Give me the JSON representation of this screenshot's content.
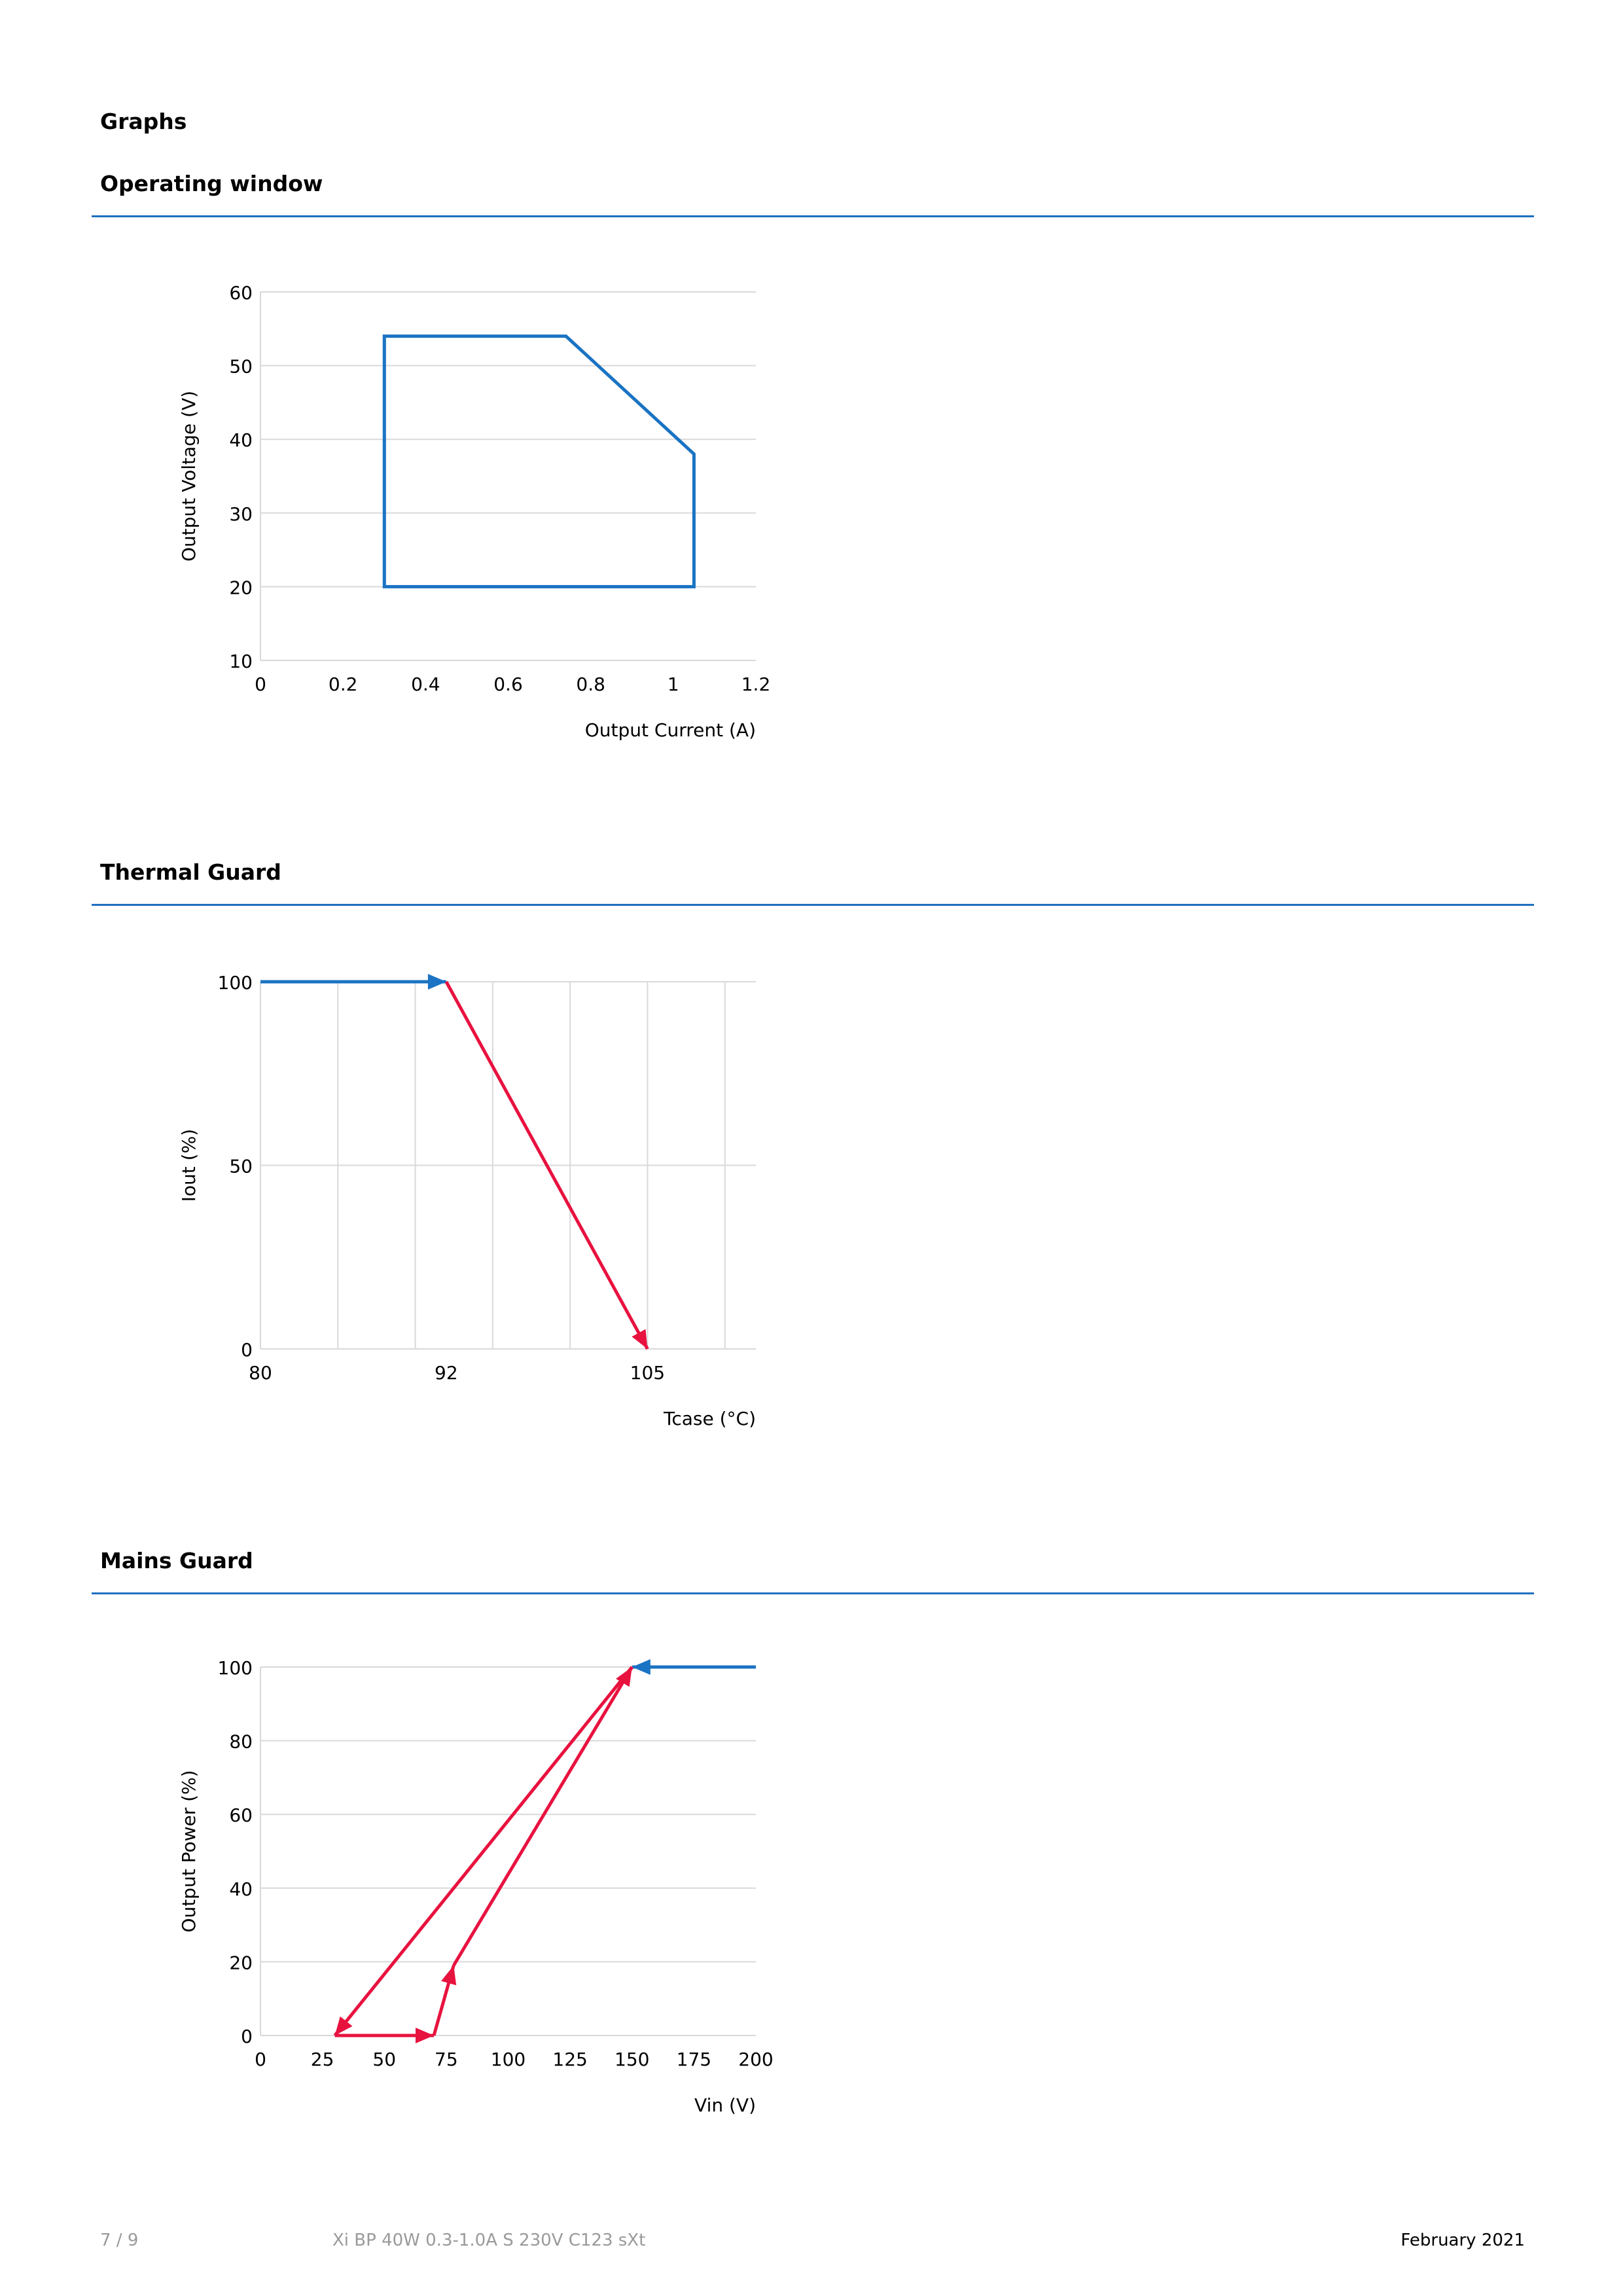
{
  "page": {
    "section_title": "Graphs",
    "sections": [
      {
        "title": "Operating window"
      },
      {
        "title": "Thermal Guard"
      },
      {
        "title": "Mains Guard"
      }
    ]
  },
  "colors": {
    "rule": "#1f6fbf",
    "blue_series": "#1a73c3",
    "red_series": "#e8123f",
    "grid": "#d9d9d9"
  },
  "footer": {
    "page_number": "7 / 9",
    "product": "Xi BP 40W 0.3-1.0A S 230V C123 sXt",
    "date": "February 2021"
  },
  "chart_data": [
    {
      "type": "line",
      "xlabel": "Output Current (A)",
      "ylabel": "Output Voltage (V)",
      "xlim": [
        0,
        1.2
      ],
      "ylim": [
        10,
        60
      ],
      "xticks": [
        0,
        0.2,
        0.4,
        0.6,
        0.8,
        1,
        1.2
      ],
      "xtick_labels": [
        "0",
        "0.2",
        "0.4",
        "0.6",
        "0.8",
        "1",
        "1.2"
      ],
      "yticks": [
        10,
        20,
        30,
        40,
        50,
        60
      ],
      "ytick_labels": [
        "10",
        "20",
        "30",
        "40",
        "50",
        "60"
      ],
      "grid": "horizontal",
      "series": [
        {
          "color": "#1a73c3",
          "closed": true,
          "points": [
            [
              0.3,
              20
            ],
            [
              0.3,
              54
            ],
            [
              0.74,
              54
            ],
            [
              1.05,
              38
            ],
            [
              1.05,
              20
            ]
          ]
        }
      ]
    },
    {
      "type": "line",
      "xlabel": "Tcase (°C)",
      "ylabel": "Iout (%)",
      "xlim": [
        80,
        112
      ],
      "ylim": [
        0,
        100
      ],
      "xticks": [
        80,
        92,
        105
      ],
      "xtick_labels": [
        "80",
        "92",
        "105"
      ],
      "yticks": [
        0,
        50,
        100
      ],
      "ytick_labels": [
        "0",
        "50",
        "100"
      ],
      "grid": "both",
      "grid_x": [
        85,
        90,
        95,
        100,
        105,
        110
      ],
      "series": [
        {
          "color": "#1a73c3",
          "points": [
            [
              80,
              100
            ],
            [
              92,
              100
            ]
          ],
          "arrow_end": true
        },
        {
          "color": "#e8123f",
          "points": [
            [
              92,
              100
            ],
            [
              105,
              0
            ]
          ],
          "arrow_end": true
        }
      ]
    },
    {
      "type": "line",
      "xlabel": "Vin (V)",
      "ylabel": "Output Power (%)",
      "xlim": [
        0,
        200
      ],
      "ylim": [
        0,
        100
      ],
      "xticks": [
        0,
        25,
        50,
        75,
        100,
        125,
        150,
        175,
        200
      ],
      "xtick_labels": [
        "0",
        "25",
        "50",
        "75",
        "100",
        "125",
        "150",
        "175",
        "200"
      ],
      "yticks": [
        0,
        20,
        40,
        60,
        80,
        100
      ],
      "ytick_labels": [
        "0",
        "20",
        "40",
        "60",
        "80",
        "100"
      ],
      "grid": "horizontal",
      "series": [
        {
          "color": "#1a73c3",
          "points": [
            [
              200,
              100
            ],
            [
              150,
              100
            ]
          ],
          "arrow_end": true
        },
        {
          "color": "#e8123f",
          "points": [
            [
              150,
              100
            ],
            [
              30,
              0
            ]
          ],
          "arrow_end": true
        },
        {
          "color": "#e8123f",
          "points": [
            [
              30,
              0
            ],
            [
              70,
              0
            ]
          ],
          "arrow_end": true
        },
        {
          "color": "#e8123f",
          "points": [
            [
              70,
              0
            ],
            [
              78,
              19
            ]
          ],
          "arrow_end": true
        },
        {
          "color": "#e8123f",
          "points": [
            [
              78,
              19
            ],
            [
              150,
              100
            ]
          ],
          "arrow_end": true
        }
      ]
    }
  ]
}
